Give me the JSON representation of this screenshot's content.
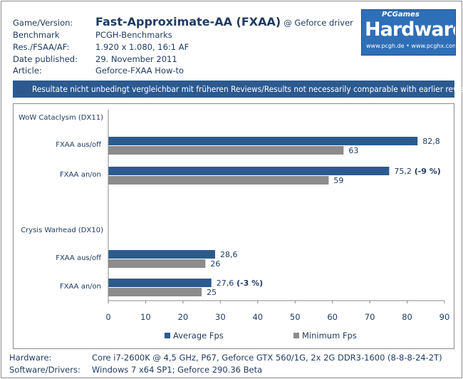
{
  "header": {
    "rows": [
      {
        "label": "Game/Version:",
        "value": ""
      },
      {
        "label": "Benchmark",
        "value": "PCGH-Benchmarks"
      },
      {
        "label": "Res./FSAA/AF:",
        "value": "1.920 x 1.080, 16:1 AF"
      },
      {
        "label": "Date published:",
        "value": "29. November 2011"
      },
      {
        "label": "Article:",
        "value": "Geforce-FXAA How-to"
      }
    ],
    "title": "Fast-Approximate-AA (FXAA)",
    "title_suffix": "@ Geforce driver"
  },
  "logo": {
    "top_text": "PCGames",
    "main_text": "Hardware",
    "url_text": "www.pcgh.de • www.pcghx.com"
  },
  "banner": "Resultate nicht unbedingt  vergleichbar mit früheren Reviews/Results not necessarily comparable with earlier reviews",
  "chart_data": {
    "type": "bar",
    "orientation": "horizontal",
    "groups": [
      {
        "heading": "WoW Cataclysm (DX11)",
        "categories": [
          {
            "label": "FXAA aus/off",
            "average": 82.8,
            "minimum": 63,
            "avg_label": "82,8",
            "min_label": "63",
            "note": ""
          },
          {
            "label": "FXAA an/on",
            "average": 75.2,
            "minimum": 59,
            "avg_label": "75,2",
            "min_label": "59",
            "note": "(-9 %)"
          }
        ]
      },
      {
        "heading": "Crysis Warhead (DX10)",
        "categories": [
          {
            "label": "FXAA aus/off",
            "average": 28.6,
            "minimum": 26,
            "avg_label": "28,6",
            "min_label": "26",
            "note": ""
          },
          {
            "label": "FXAA an/on",
            "average": 27.6,
            "minimum": 25,
            "avg_label": "27,6",
            "min_label": "25",
            "note": "(-3 %)"
          }
        ]
      }
    ],
    "series": [
      {
        "name": "Average Fps",
        "color": "#2c5a8f"
      },
      {
        "name": "Minimum Fps",
        "color": "#8c8c8c"
      }
    ],
    "xlim": [
      0,
      90
    ],
    "xticks": [
      0,
      10,
      20,
      30,
      40,
      50,
      60,
      70,
      80,
      90
    ],
    "grid": false,
    "legend_position": "bottom"
  },
  "footer": {
    "rows": [
      {
        "label": "Hardware:",
        "value": "Core i7-2600K @ 4,5 GHz, P67, Geforce GTX 560/1G, 2x 2G DDR3-1600 (8-8-8-24-2T)"
      },
      {
        "label": "Software/Drivers:",
        "value": "Windows 7 x64 SP1; Geforce 290.36 Beta"
      }
    ]
  }
}
